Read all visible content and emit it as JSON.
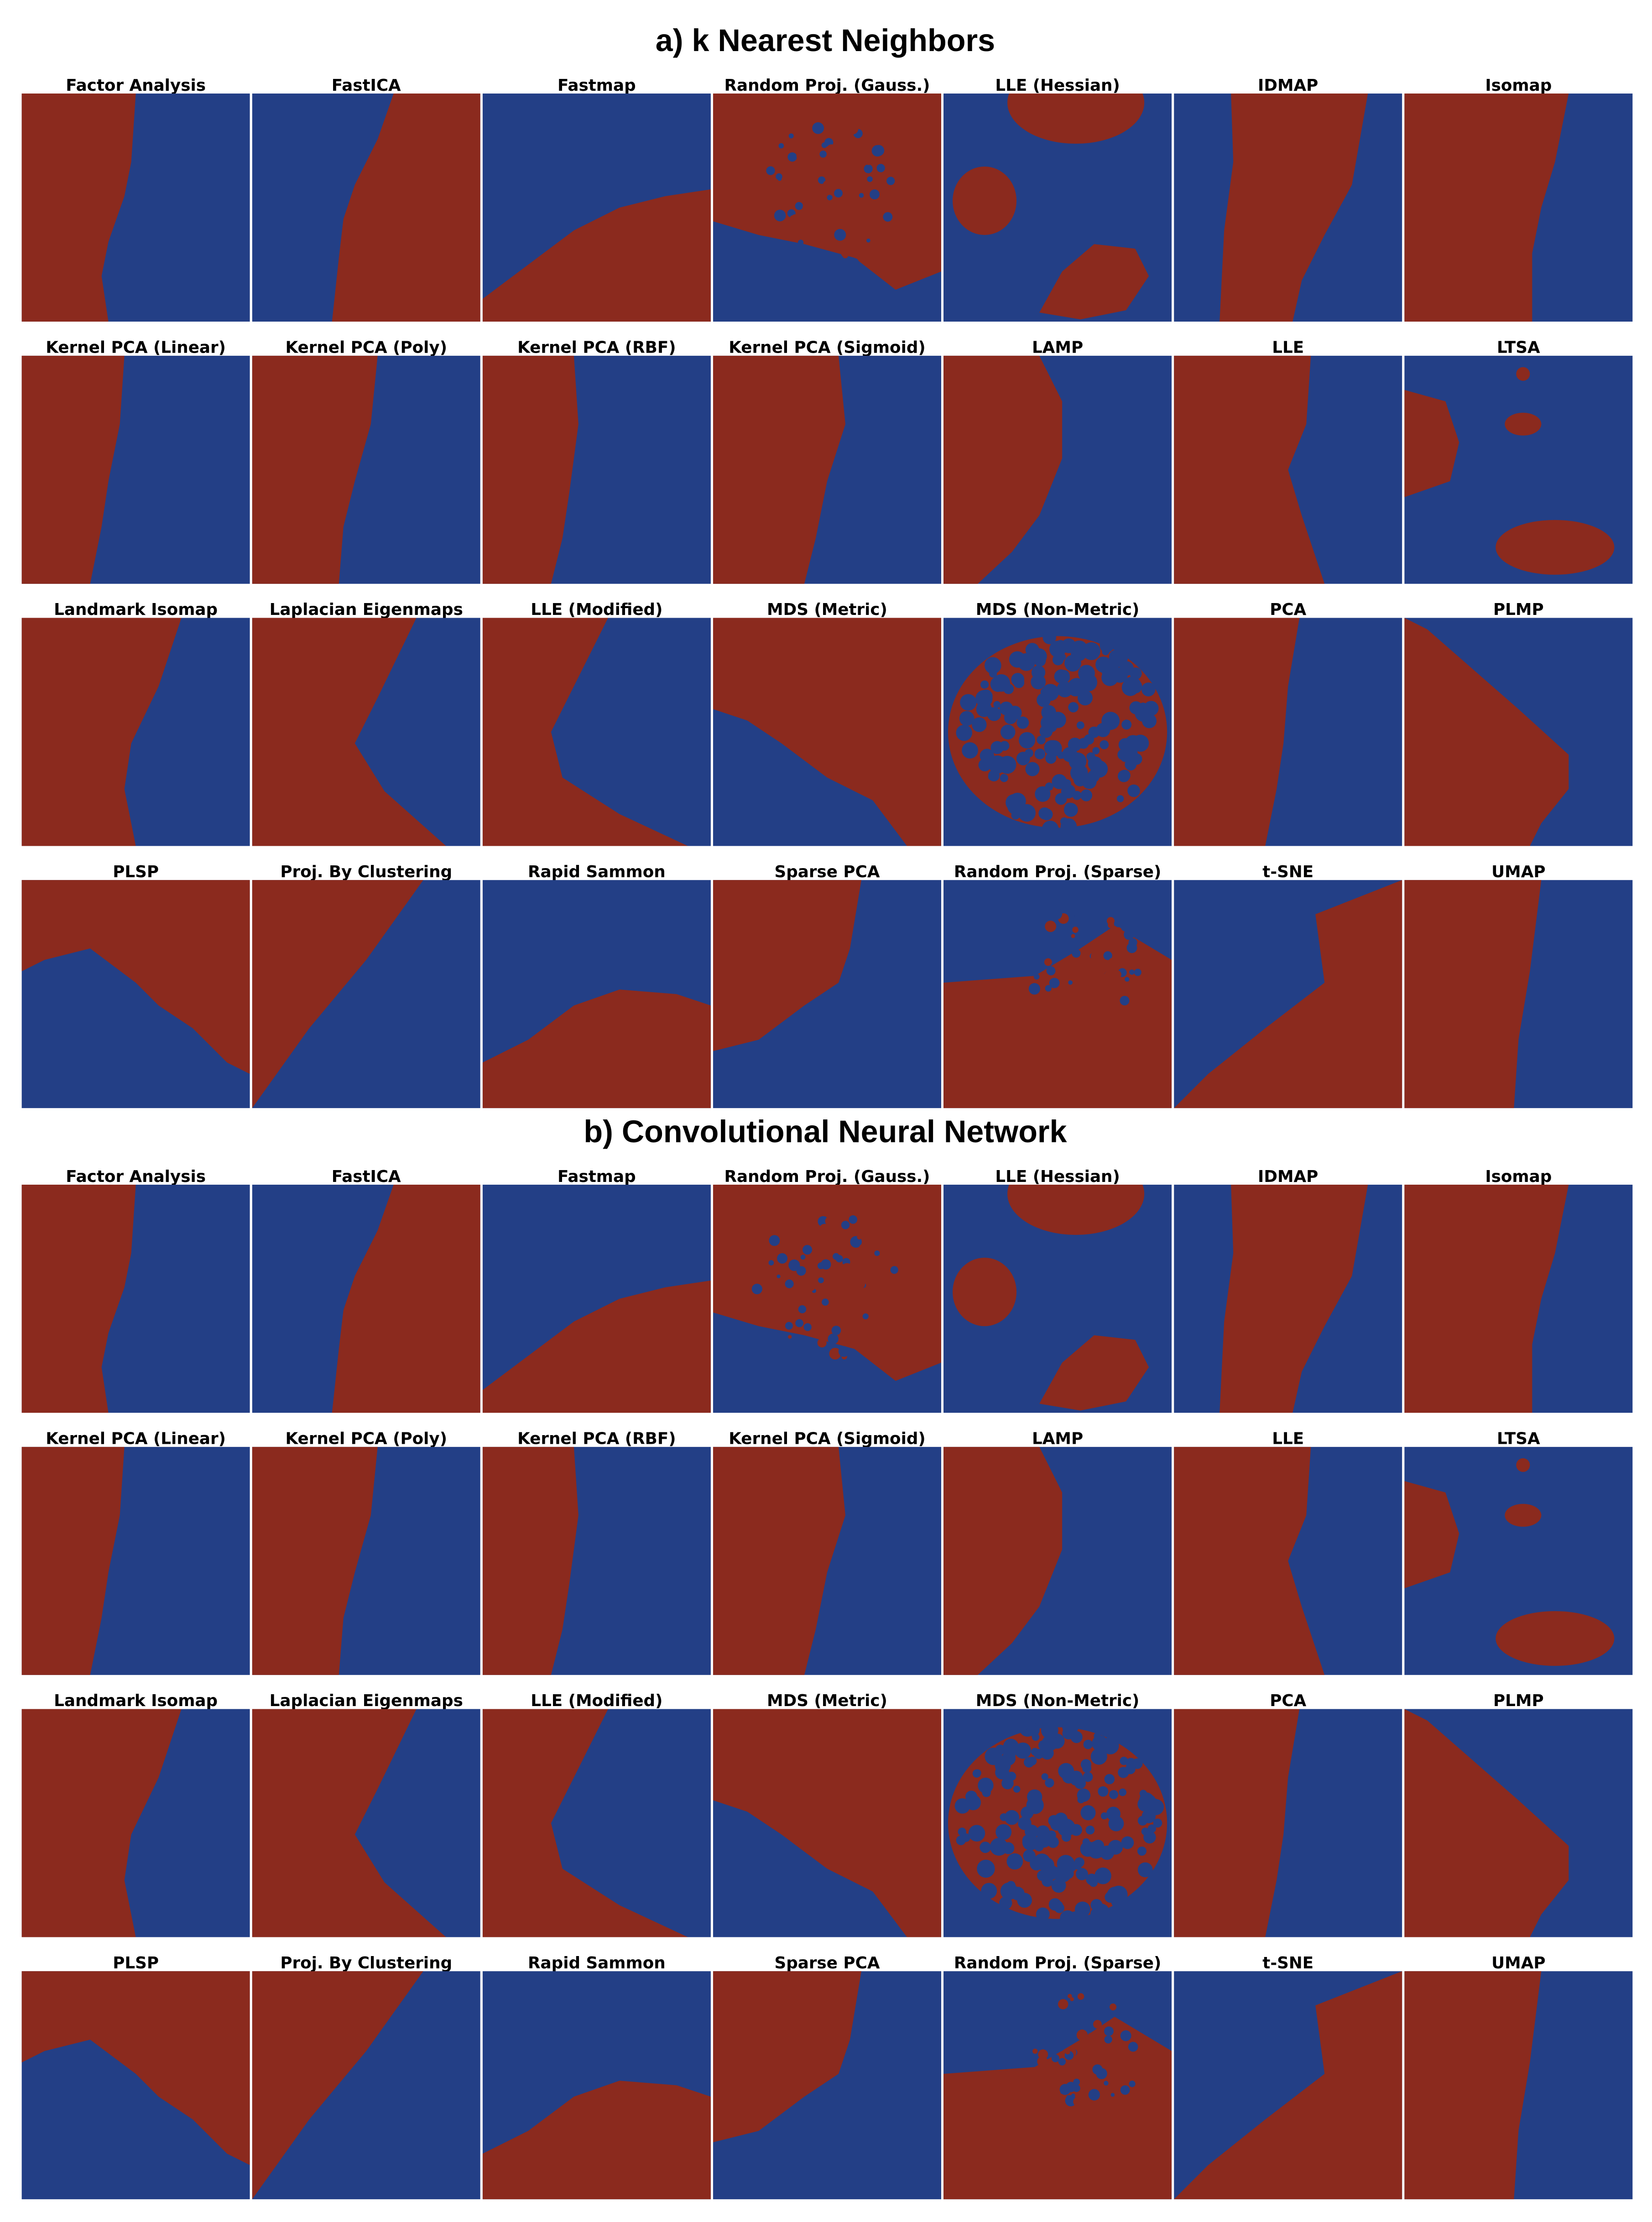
{
  "sections": [
    {
      "title": "a) k Nearest Neighbors",
      "panels": [
        "Factor Analysis",
        "FastICA",
        "Fastmap",
        "Random Proj. (Gauss.)",
        "LLE (Hessian)",
        "IDMAP",
        "Isomap",
        "Kernel PCA (Linear)",
        "Kernel PCA (Poly)",
        "Kernel PCA (RBF)",
        "Kernel PCA (Sigmoid)",
        "LAMP",
        "LLE",
        "LTSA",
        "Landmark Isomap",
        "Laplacian Eigenmaps",
        "LLE (Modified)",
        "MDS (Metric)",
        "MDS (Non-Metric)",
        "PCA",
        "PLMP",
        "PLSP",
        "Proj. By Clustering",
        "Rapid Sammon",
        "Sparse PCA",
        "Random Proj. (Sparse)",
        "t-SNE",
        "UMAP"
      ]
    },
    {
      "title": "b) Convolutional Neural Network",
      "panels": [
        "Factor Analysis",
        "FastICA",
        "Fastmap",
        "Random Proj. (Gauss.)",
        "LLE (Hessian)",
        "IDMAP",
        "Isomap",
        "Kernel PCA (Linear)",
        "Kernel PCA (Poly)",
        "Kernel PCA (RBF)",
        "Kernel PCA (Sigmoid)",
        "LAMP",
        "LLE",
        "LTSA",
        "Landmark Isomap",
        "Laplacian Eigenmaps",
        "LLE (Modified)",
        "MDS (Metric)",
        "MDS (Non-Metric)",
        "PCA",
        "PLMP",
        "PLSP",
        "Proj. By Clustering",
        "Rapid Sammon",
        "Sparse PCA",
        "Random Proj. (Sparse)",
        "t-SNE",
        "UMAP"
      ]
    }
  ]
}
